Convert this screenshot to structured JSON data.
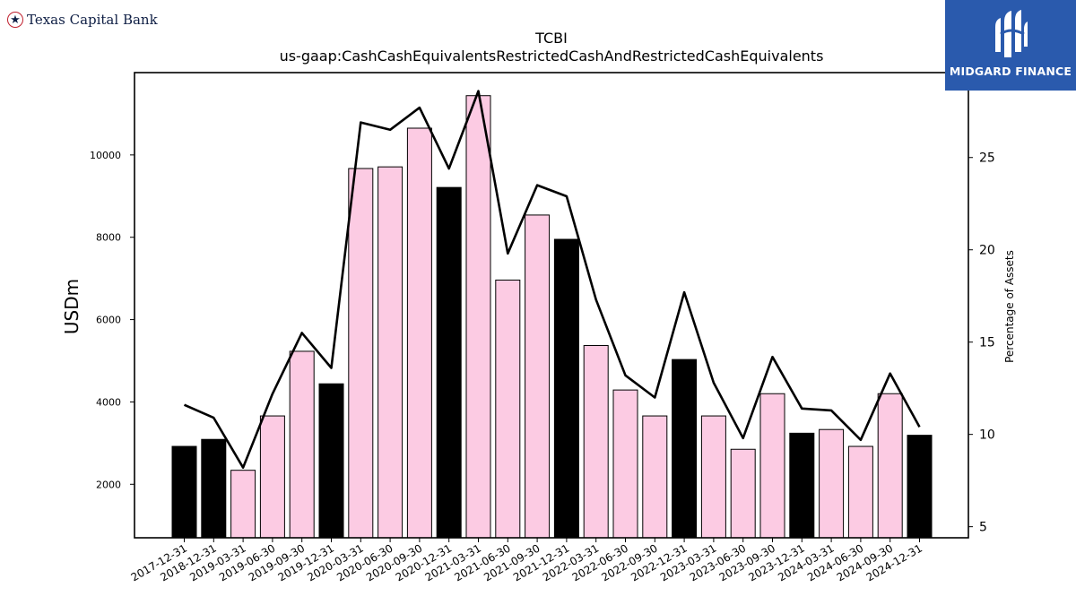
{
  "brands": {
    "left_name": "Texas Capital Bank",
    "right_name": "MIDGARD FINANCE"
  },
  "colors": {
    "bar_black": "#000000",
    "bar_pink": "#fccbe3",
    "line": "#000000",
    "right_brand_bg": "#2a5aad"
  },
  "chart_data": {
    "type": "bar",
    "title": "TCBI",
    "subtitle": "us-gaap:CashCashEquivalentsRestrictedCashAndRestrictedCashEquivalents",
    "ylabel": "USDm",
    "y2label": "Percentage of Assets",
    "ylim": [
      700,
      12000
    ],
    "y2lim": [
      4.4,
      29.6
    ],
    "yticks": [
      2000,
      4000,
      6000,
      8000,
      10000
    ],
    "y2ticks": [
      5,
      10,
      15,
      20,
      25
    ],
    "grid": false,
    "categories": [
      "2017-12-31",
      "2018-12-31",
      "2019-03-31",
      "2019-06-30",
      "2019-09-30",
      "2019-12-31",
      "2020-03-31",
      "2020-06-30",
      "2020-09-30",
      "2020-12-31",
      "2021-03-31",
      "2021-06-30",
      "2021-09-30",
      "2021-12-31",
      "2022-03-31",
      "2022-06-30",
      "2022-09-30",
      "2022-12-31",
      "2023-03-31",
      "2023-06-30",
      "2023-09-30",
      "2023-12-31",
      "2024-03-31",
      "2024-06-30",
      "2024-09-30",
      "2024-12-31"
    ],
    "series": [
      {
        "type": "bar",
        "values": [
          2920,
          3090,
          2340,
          3660,
          5230,
          4440,
          9670,
          9710,
          10650,
          9210,
          11440,
          6960,
          8540,
          7950,
          5370,
          4290,
          3660,
          5030,
          3660,
          2850,
          4200,
          3240,
          3330,
          2920,
          4200,
          3190
        ],
        "year_end": [
          true,
          true,
          false,
          false,
          false,
          true,
          false,
          false,
          false,
          true,
          false,
          false,
          false,
          true,
          false,
          false,
          false,
          true,
          false,
          false,
          false,
          true,
          false,
          false,
          false,
          true
        ]
      },
      {
        "type": "line",
        "axis": "right",
        "values": [
          11.6,
          10.9,
          8.2,
          12.2,
          15.5,
          13.6,
          26.9,
          26.5,
          27.7,
          24.4,
          28.6,
          19.8,
          23.5,
          22.9,
          17.3,
          13.2,
          12.0,
          17.7,
          12.8,
          9.8,
          14.2,
          11.4,
          11.3,
          9.7,
          13.3,
          10.4
        ]
      }
    ]
  }
}
